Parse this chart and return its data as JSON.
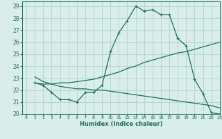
{
  "xlabel": "Humidex (Indice chaleur)",
  "xlim": [
    -0.5,
    23
  ],
  "ylim": [
    20,
    29.4
  ],
  "background_color": "#daeee9",
  "grid_color": "#a8ccc8",
  "line_color": "#1a6e62",
  "curve1_x": [
    1,
    2,
    3,
    4,
    5,
    6,
    7,
    8,
    9,
    10,
    11,
    12,
    13,
    14,
    15,
    16,
    17,
    18,
    19,
    20,
    21,
    22,
    23
  ],
  "curve1_y": [
    22.6,
    22.4,
    21.8,
    21.2,
    21.2,
    21.0,
    21.8,
    21.8,
    22.4,
    25.2,
    26.8,
    27.8,
    29.0,
    28.6,
    28.7,
    28.3,
    28.3,
    26.3,
    25.7,
    22.9,
    21.7,
    20.1,
    20.0
  ],
  "curve2_x": [
    1,
    2,
    3,
    4,
    5,
    6,
    7,
    8,
    9,
    10,
    11,
    12,
    13,
    14,
    15,
    16,
    17,
    18,
    19,
    20,
    21,
    22,
    23
  ],
  "curve2_y": [
    22.6,
    22.5,
    22.5,
    22.6,
    22.6,
    22.7,
    22.8,
    22.9,
    23.1,
    23.3,
    23.5,
    23.8,
    24.0,
    24.3,
    24.5,
    24.7,
    24.9,
    25.1,
    25.2,
    25.4,
    25.6,
    25.8,
    26.0
  ],
  "curve3_x": [
    1,
    2,
    3,
    4,
    5,
    6,
    7,
    8,
    9,
    10,
    11,
    12,
    13,
    14,
    15,
    16,
    17,
    18,
    19,
    20,
    21,
    22,
    23
  ],
  "curve3_y": [
    23.1,
    22.7,
    22.5,
    22.3,
    22.2,
    22.1,
    22.1,
    22.0,
    22.0,
    21.9,
    21.8,
    21.7,
    21.6,
    21.5,
    21.4,
    21.3,
    21.2,
    21.1,
    21.0,
    20.9,
    20.8,
    20.7,
    20.5
  ],
  "yticks": [
    20,
    21,
    22,
    23,
    24,
    25,
    26,
    27,
    28,
    29
  ],
  "xticks": [
    0,
    1,
    2,
    3,
    4,
    5,
    6,
    7,
    8,
    9,
    10,
    11,
    12,
    13,
    14,
    15,
    16,
    17,
    18,
    19,
    20,
    21,
    22,
    23
  ]
}
